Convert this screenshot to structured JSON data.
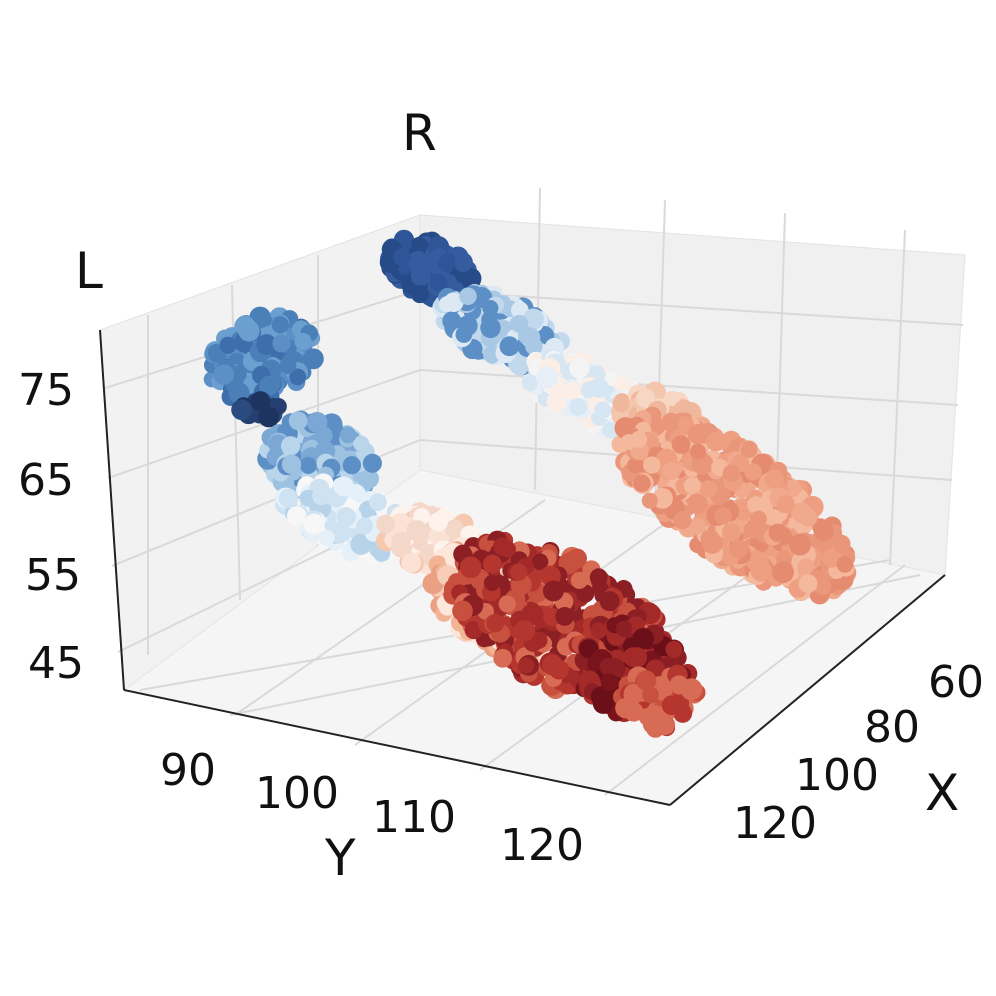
{
  "chart_data": {
    "type": "scatter",
    "projection": "3d",
    "xlabel": "X",
    "ylabel": "Y",
    "zlabel": "",
    "x_ticks": [
      "60",
      "80",
      "100",
      "120"
    ],
    "y_ticks": [
      "90",
      "100",
      "110",
      "120"
    ],
    "z_ticks": [
      "45",
      "55",
      "65",
      "75"
    ],
    "grid": true,
    "colormap": "RdBu_r",
    "annotations": [
      "L",
      "R"
    ],
    "clusters": [
      {
        "group": "L",
        "description_color": "#4a7fb8",
        "x": [
          88,
          90,
          92,
          94,
          96,
          98,
          100,
          102,
          104,
          106,
          108,
          110,
          112,
          114,
          116,
          118,
          120
        ],
        "y": [
          86,
          87,
          88,
          90,
          92,
          95,
          98,
          101,
          104,
          107,
          110,
          113,
          116,
          118,
          120,
          122,
          124
        ],
        "z": [
          72,
          75,
          76,
          74,
          70,
          66,
          62,
          58,
          56,
          54,
          52,
          50,
          49,
          48,
          47,
          46,
          45
        ]
      },
      {
        "group": "R",
        "description_color": "#e9967a",
        "x": [
          55,
          58,
          61,
          64,
          67,
          70,
          73,
          76,
          79,
          82,
          85,
          88
        ],
        "y": [
          92,
          95,
          98,
          101,
          104,
          107,
          110,
          113,
          116,
          119,
          122,
          124
        ],
        "z": [
          78,
          76,
          73,
          70,
          67,
          64,
          61,
          58,
          55,
          53,
          51,
          50
        ]
      }
    ]
  }
}
